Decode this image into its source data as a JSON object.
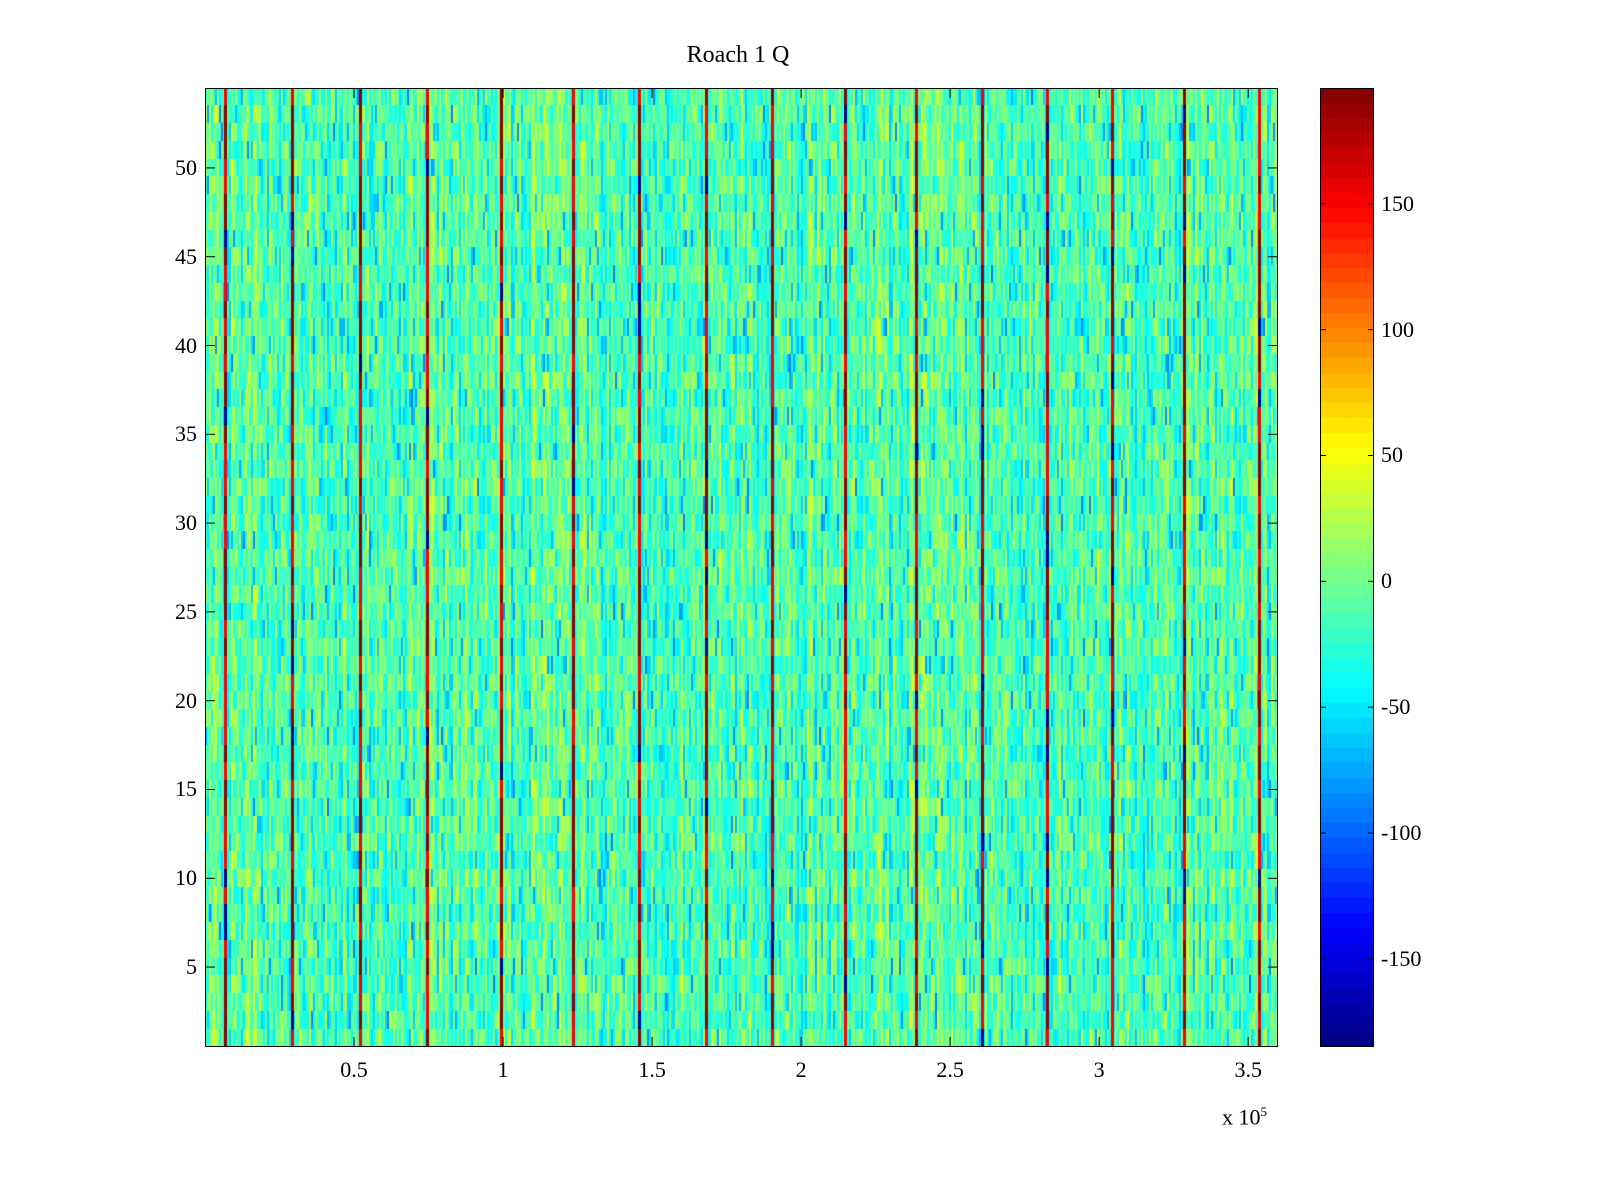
{
  "chart_data": {
    "type": "heatmap",
    "title": "Roach 1 Q",
    "xlabel": "",
    "ylabel": "",
    "x_exponent_label": "x 10",
    "x_exponent": "5",
    "xlim": [
      0,
      3.6
    ],
    "x_units_scale": 100000,
    "ylim": [
      0.5,
      54.5
    ],
    "rows": 54,
    "xticks": [
      0.5,
      1,
      1.5,
      2,
      2.5,
      3,
      3.5
    ],
    "xtick_labels": [
      "0.5",
      "1",
      "1.5",
      "2",
      "2.5",
      "3",
      "3.5"
    ],
    "yticks": [
      5,
      10,
      15,
      20,
      25,
      30,
      35,
      40,
      45,
      50
    ],
    "ytick_labels": [
      "5",
      "10",
      "15",
      "20",
      "25",
      "30",
      "35",
      "40",
      "45",
      "50"
    ],
    "colormap": "jet",
    "clim": [
      -185,
      196
    ],
    "colorbar_ticks": [
      -150,
      -100,
      -50,
      0,
      50,
      100,
      150
    ],
    "colorbar_tick_labels": [
      "-150",
      "-100",
      "-50",
      "0",
      "50",
      "100",
      "150"
    ],
    "background_value_range": [
      -80,
      60
    ],
    "stripe_x_positions": [
      0.067,
      0.292,
      0.52,
      0.745,
      0.993,
      1.235,
      1.456,
      1.681,
      1.903,
      2.148,
      2.386,
      2.607,
      2.826,
      3.044,
      3.285,
      3.537
    ],
    "stripe_value": 190,
    "grid": false
  }
}
